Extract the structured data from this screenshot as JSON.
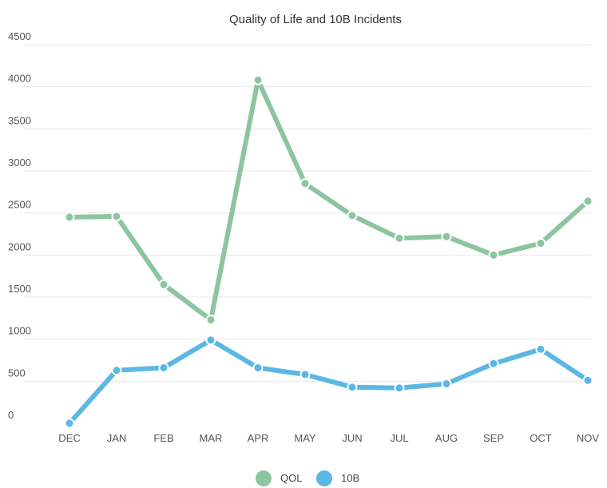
{
  "chart_data": {
    "type": "line",
    "title": "Quality of Life and 10B Incidents",
    "xlabel": "",
    "ylabel": "",
    "categories": [
      "DEC",
      "JAN",
      "FEB",
      "MAR",
      "APR",
      "MAY",
      "JUN",
      "JUL",
      "AUG",
      "SEP",
      "OCT",
      "NOV"
    ],
    "ylim": [
      0,
      4500
    ],
    "yticks": [
      0,
      500,
      1000,
      1500,
      2000,
      2500,
      3000,
      3500,
      4000,
      4500
    ],
    "grid": true,
    "legend_position": "bottom",
    "series": [
      {
        "name": "QOL",
        "color": "#8cc5a0",
        "values": [
          2450,
          2460,
          1650,
          1230,
          4080,
          2850,
          2470,
          2200,
          2220,
          2000,
          2140,
          2640
        ]
      },
      {
        "name": "10B",
        "color": "#5bb7e3",
        "values": [
          0,
          630,
          660,
          990,
          660,
          580,
          430,
          420,
          470,
          710,
          880,
          510
        ]
      }
    ]
  }
}
